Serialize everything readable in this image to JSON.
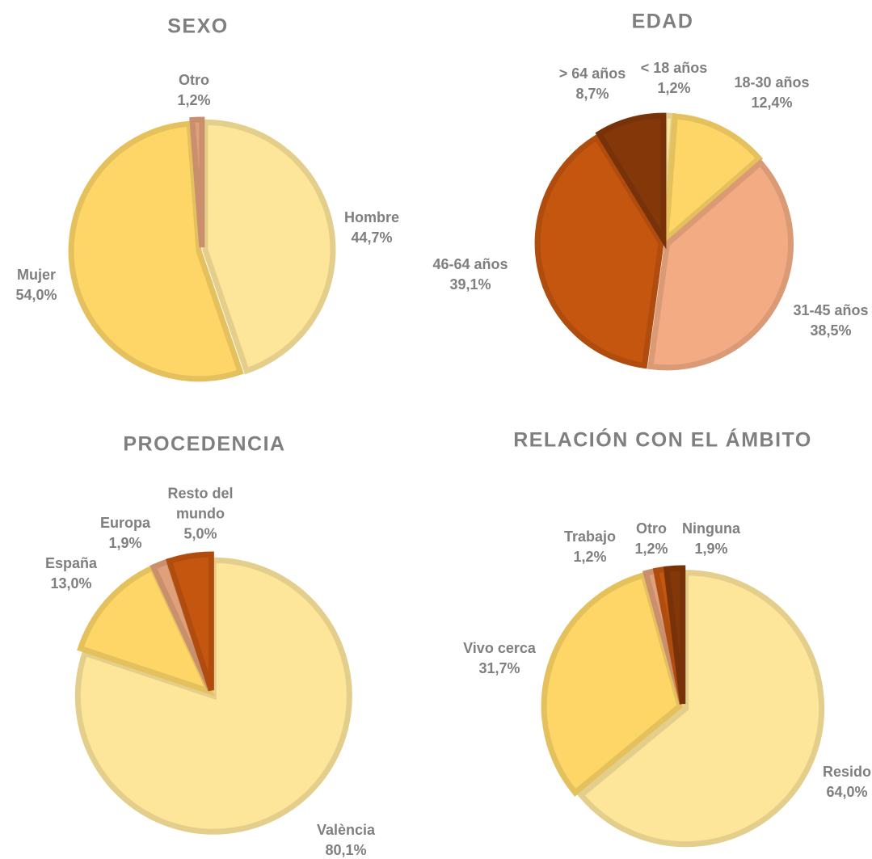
{
  "chart_data": [
    {
      "type": "pie",
      "title": "SEXO",
      "categories": [
        "Hombre",
        "Mujer",
        "Otro"
      ],
      "values": [
        44.7,
        54.0,
        1.2
      ],
      "value_labels": [
        "44,7%",
        "54,0%",
        "1,2%"
      ],
      "colors": [
        "#fde59a",
        "#fdd667",
        "#e0a07a"
      ]
    },
    {
      "type": "pie",
      "title": "EDAD",
      "categories": [
        "< 18 años",
        "18-30 años",
        "31-45 años",
        "46-64 años",
        "> 64 años"
      ],
      "values": [
        1.2,
        12.4,
        38.5,
        39.1,
        8.7
      ],
      "value_labels": [
        "1,2%",
        "12,4%",
        "38,5%",
        "39,1%",
        "8,7%"
      ],
      "colors": [
        "#fbe6a0",
        "#fdd667",
        "#f2ab82",
        "#c4560f",
        "#84380a"
      ]
    },
    {
      "type": "pie",
      "title": "PROCEDENCIA",
      "categories": [
        "València",
        "España",
        "Europa",
        "Resto del mundo"
      ],
      "values": [
        80.1,
        13.0,
        1.9,
        5.0
      ],
      "value_labels": [
        "80,1%",
        "13,0%",
        "1,9%",
        "5,0%"
      ],
      "colors": [
        "#fde59a",
        "#fdd667",
        "#e0a07a",
        "#c4560f"
      ]
    },
    {
      "type": "pie",
      "title": "RELACIÓN CON EL ÁMBITO",
      "categories": [
        "Resido",
        "Vivo cerca",
        "Trabajo",
        "Otro",
        "Ninguna"
      ],
      "values": [
        64.0,
        31.7,
        1.2,
        1.2,
        1.9
      ],
      "value_labels": [
        "64,0%",
        "31,7%",
        "1,2%",
        "1,2%",
        "1,9%"
      ],
      "colors": [
        "#fde59a",
        "#fdd667",
        "#e0a07a",
        "#c4560f",
        "#84380a"
      ]
    }
  ]
}
